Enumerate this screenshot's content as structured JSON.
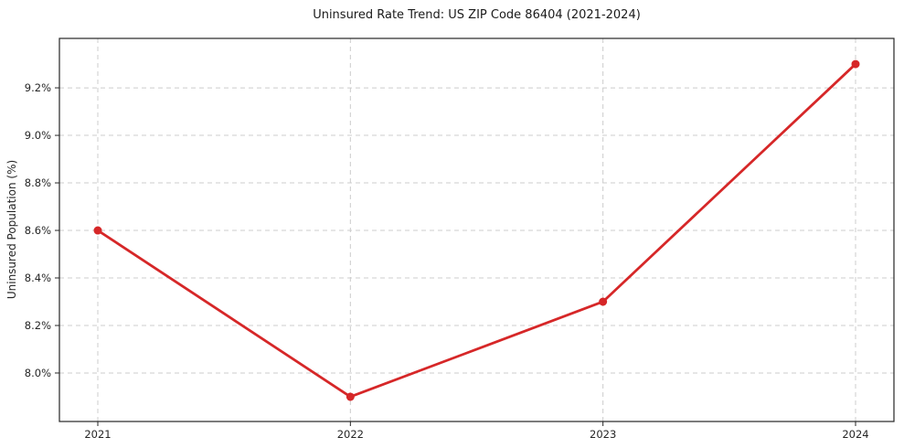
{
  "chart_data": {
    "type": "line",
    "title": "Uninsured Rate Trend: US ZIP Code 86404 (2021-2024)",
    "xlabel": "",
    "ylabel": "Uninsured Population (%)",
    "x": [
      2021,
      2022,
      2023,
      2024
    ],
    "series": [
      {
        "name": "Uninsured rate",
        "values": [
          8.6,
          7.9,
          8.3,
          9.3
        ]
      }
    ],
    "x_tick_labels": [
      "2021",
      "2022",
      "2023",
      "2024"
    ],
    "y_ticks": [
      8.0,
      8.2,
      8.4,
      8.6,
      8.8,
      9.0,
      9.2
    ],
    "y_tick_labels": [
      "8.0%",
      "8.2%",
      "8.4%",
      "8.6%",
      "8.8%",
      "9.0%",
      "9.2%"
    ],
    "ylim": [
      7.796,
      9.408
    ],
    "grid": true,
    "legend": "none",
    "colors": {
      "line": "#d62728",
      "marker": "#d62728",
      "grid": "#cccccc",
      "spine": "#262626",
      "tick_text": "#262626",
      "title_text": "#1a1a1a",
      "background": "#ffffff"
    }
  }
}
